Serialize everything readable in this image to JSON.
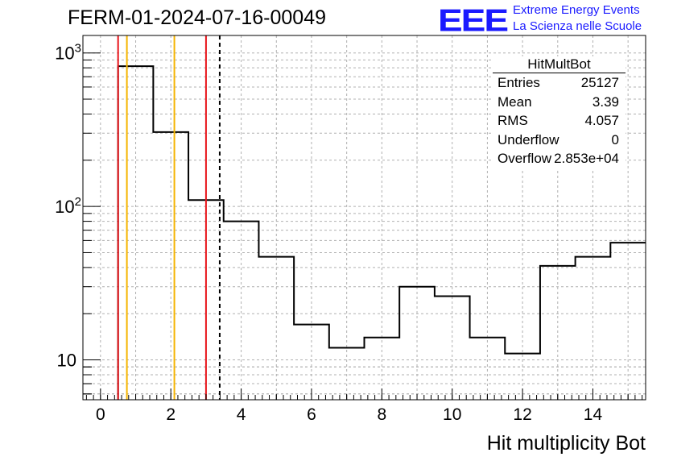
{
  "header": {
    "run_title": "FERM-01-2024-07-16-00049",
    "logo_text": "EEE",
    "logo_line1": "Extreme Energy Events",
    "logo_line2": "La Scienza nelle Scuole"
  },
  "stats": {
    "title": "HitMultBot",
    "rows": [
      {
        "key": "Entries",
        "value": "25127"
      },
      {
        "key": "Mean",
        "value": "3.39"
      },
      {
        "key": "RMS",
        "value": "4.057"
      },
      {
        "key": "Underflow",
        "value": "0"
      },
      {
        "key": "Overflow",
        "value": "2.853e+04"
      }
    ]
  },
  "colors": {
    "histogram": "#000000",
    "red_line": "#e8151b",
    "orange_line": "#f5b400",
    "grid": "#b0b0b0",
    "logo": "#1a1aff"
  },
  "chart_data": {
    "type": "histogram",
    "title": "",
    "xlabel": "Hit multiplicity Bot",
    "ylabel": "",
    "yscale": "log",
    "xlim": [
      -0.5,
      15.5
    ],
    "ylim": [
      5.5,
      1300
    ],
    "grid": true,
    "x_ticks": [
      0,
      2,
      4,
      6,
      8,
      10,
      12,
      14
    ],
    "x_tick_labels": [
      "0",
      "2",
      "4",
      "6",
      "8",
      "10",
      "12",
      "14"
    ],
    "y_ticks": [
      10,
      100,
      1000
    ],
    "y_tick_labels": [
      "10",
      "10^2",
      "10^3"
    ],
    "bins": {
      "edges": [
        0.5,
        1.5,
        2.5,
        3.5,
        4.5,
        5.5,
        6.5,
        7.5,
        8.5,
        9.5,
        10.5,
        11.5,
        12.5,
        13.5,
        14.5,
        15.5
      ],
      "counts": [
        820,
        305,
        110,
        80,
        47,
        17,
        12,
        14,
        30,
        26,
        14,
        11,
        41,
        47,
        58
      ]
    },
    "vertical_lines": [
      {
        "x": 0.5,
        "color": "red",
        "style": "solid"
      },
      {
        "x": 0.75,
        "color": "orange",
        "style": "solid"
      },
      {
        "x": 2.1,
        "color": "orange",
        "style": "solid"
      },
      {
        "x": 3.0,
        "color": "red",
        "style": "solid"
      },
      {
        "x": 3.39,
        "color": "black",
        "style": "dashed"
      }
    ]
  }
}
